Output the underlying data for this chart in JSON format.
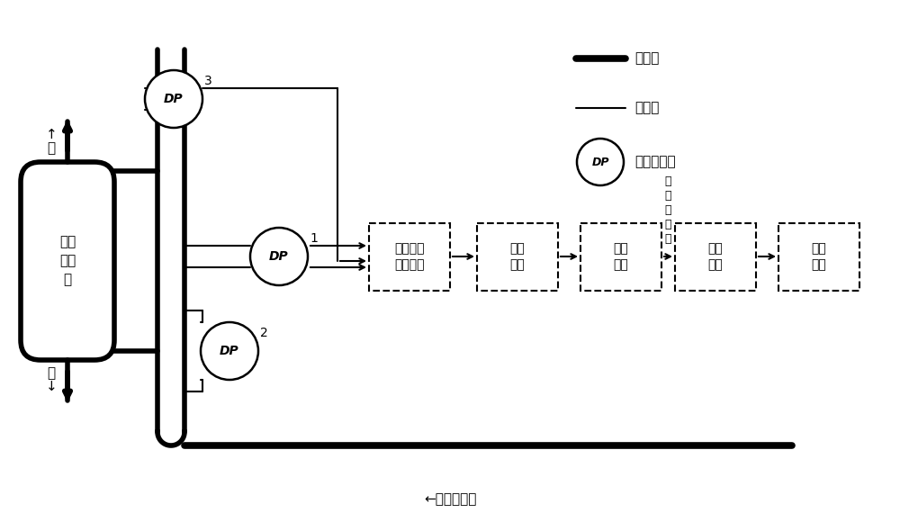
{
  "bg_color": "#ffffff",
  "line_color": "#000000",
  "thick_lw": 4.0,
  "thin_lw": 1.5,
  "dash_lw": 1.3,
  "box_labels": [
    "信号采集\n实时滤波",
    "无量\n纲化",
    "特征\n计算",
    "流型\n判别",
    "识别\n结果"
  ],
  "legend_items": [
    "主管道",
    "引压管",
    "压差传感器"
  ],
  "annotation_text": "均\n值\n、\n极\n差",
  "bottom_label": "←气液混合物",
  "gas_label": "↑\n气",
  "liquid_label": "液\n↓",
  "separator_text": "气液\n分离\n器"
}
